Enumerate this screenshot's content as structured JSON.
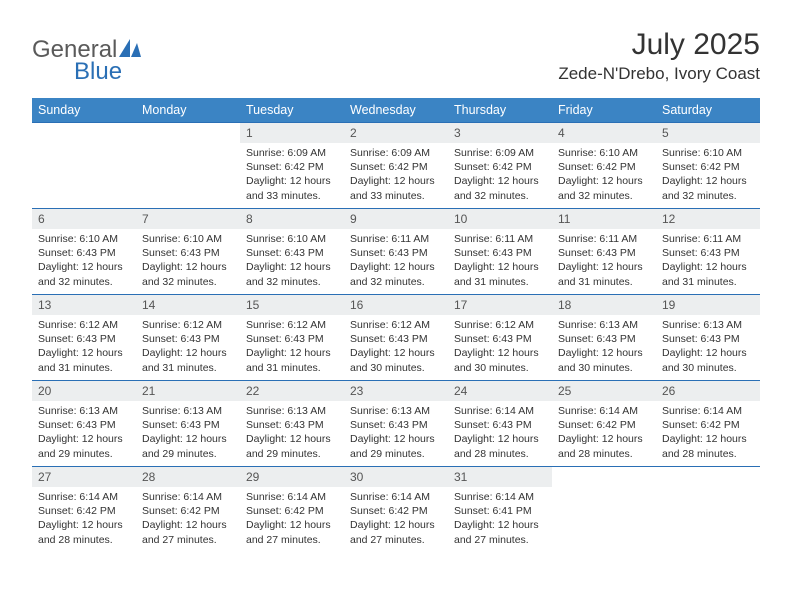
{
  "logo": {
    "text1": "General",
    "text2": "Blue"
  },
  "title": "July 2025",
  "location": "Zede-N'Drebo, Ivory Coast",
  "colors": {
    "header_bg": "#3b84c4",
    "week_border": "#2a6fb5",
    "daynum_bg": "#eceeef",
    "text": "#333333",
    "logo_gray": "#5a5a5a",
    "logo_blue": "#2a6fb5"
  },
  "dayNames": [
    "Sunday",
    "Monday",
    "Tuesday",
    "Wednesday",
    "Thursday",
    "Friday",
    "Saturday"
  ],
  "weeks": [
    [
      null,
      null,
      {
        "n": "1",
        "sr": "6:09 AM",
        "ss": "6:42 PM",
        "dl": "12 hours and 33 minutes."
      },
      {
        "n": "2",
        "sr": "6:09 AM",
        "ss": "6:42 PM",
        "dl": "12 hours and 33 minutes."
      },
      {
        "n": "3",
        "sr": "6:09 AM",
        "ss": "6:42 PM",
        "dl": "12 hours and 32 minutes."
      },
      {
        "n": "4",
        "sr": "6:10 AM",
        "ss": "6:42 PM",
        "dl": "12 hours and 32 minutes."
      },
      {
        "n": "5",
        "sr": "6:10 AM",
        "ss": "6:42 PM",
        "dl": "12 hours and 32 minutes."
      }
    ],
    [
      {
        "n": "6",
        "sr": "6:10 AM",
        "ss": "6:43 PM",
        "dl": "12 hours and 32 minutes."
      },
      {
        "n": "7",
        "sr": "6:10 AM",
        "ss": "6:43 PM",
        "dl": "12 hours and 32 minutes."
      },
      {
        "n": "8",
        "sr": "6:10 AM",
        "ss": "6:43 PM",
        "dl": "12 hours and 32 minutes."
      },
      {
        "n": "9",
        "sr": "6:11 AM",
        "ss": "6:43 PM",
        "dl": "12 hours and 32 minutes."
      },
      {
        "n": "10",
        "sr": "6:11 AM",
        "ss": "6:43 PM",
        "dl": "12 hours and 31 minutes."
      },
      {
        "n": "11",
        "sr": "6:11 AM",
        "ss": "6:43 PM",
        "dl": "12 hours and 31 minutes."
      },
      {
        "n": "12",
        "sr": "6:11 AM",
        "ss": "6:43 PM",
        "dl": "12 hours and 31 minutes."
      }
    ],
    [
      {
        "n": "13",
        "sr": "6:12 AM",
        "ss": "6:43 PM",
        "dl": "12 hours and 31 minutes."
      },
      {
        "n": "14",
        "sr": "6:12 AM",
        "ss": "6:43 PM",
        "dl": "12 hours and 31 minutes."
      },
      {
        "n": "15",
        "sr": "6:12 AM",
        "ss": "6:43 PM",
        "dl": "12 hours and 31 minutes."
      },
      {
        "n": "16",
        "sr": "6:12 AM",
        "ss": "6:43 PM",
        "dl": "12 hours and 30 minutes."
      },
      {
        "n": "17",
        "sr": "6:12 AM",
        "ss": "6:43 PM",
        "dl": "12 hours and 30 minutes."
      },
      {
        "n": "18",
        "sr": "6:13 AM",
        "ss": "6:43 PM",
        "dl": "12 hours and 30 minutes."
      },
      {
        "n": "19",
        "sr": "6:13 AM",
        "ss": "6:43 PM",
        "dl": "12 hours and 30 minutes."
      }
    ],
    [
      {
        "n": "20",
        "sr": "6:13 AM",
        "ss": "6:43 PM",
        "dl": "12 hours and 29 minutes."
      },
      {
        "n": "21",
        "sr": "6:13 AM",
        "ss": "6:43 PM",
        "dl": "12 hours and 29 minutes."
      },
      {
        "n": "22",
        "sr": "6:13 AM",
        "ss": "6:43 PM",
        "dl": "12 hours and 29 minutes."
      },
      {
        "n": "23",
        "sr": "6:13 AM",
        "ss": "6:43 PM",
        "dl": "12 hours and 29 minutes."
      },
      {
        "n": "24",
        "sr": "6:14 AM",
        "ss": "6:43 PM",
        "dl": "12 hours and 28 minutes."
      },
      {
        "n": "25",
        "sr": "6:14 AM",
        "ss": "6:42 PM",
        "dl": "12 hours and 28 minutes."
      },
      {
        "n": "26",
        "sr": "6:14 AM",
        "ss": "6:42 PM",
        "dl": "12 hours and 28 minutes."
      }
    ],
    [
      {
        "n": "27",
        "sr": "6:14 AM",
        "ss": "6:42 PM",
        "dl": "12 hours and 28 minutes."
      },
      {
        "n": "28",
        "sr": "6:14 AM",
        "ss": "6:42 PM",
        "dl": "12 hours and 27 minutes."
      },
      {
        "n": "29",
        "sr": "6:14 AM",
        "ss": "6:42 PM",
        "dl": "12 hours and 27 minutes."
      },
      {
        "n": "30",
        "sr": "6:14 AM",
        "ss": "6:42 PM",
        "dl": "12 hours and 27 minutes."
      },
      {
        "n": "31",
        "sr": "6:14 AM",
        "ss": "6:41 PM",
        "dl": "12 hours and 27 minutes."
      },
      null,
      null
    ]
  ],
  "labels": {
    "sunrise": "Sunrise:",
    "sunset": "Sunset:",
    "daylight": "Daylight:"
  }
}
